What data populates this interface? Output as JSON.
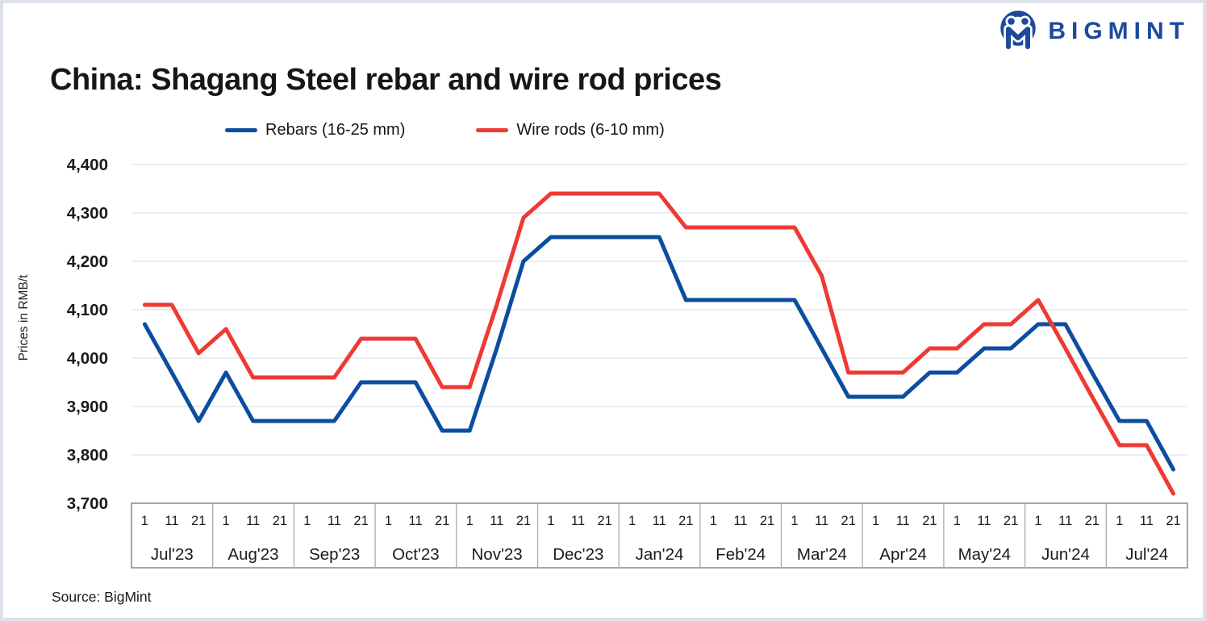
{
  "logo": {
    "brand": "BIGMINT"
  },
  "source": "Source: BigMint",
  "colors": {
    "brand_blue": "#1d4a9c",
    "rebars_blue": "#0b4da1",
    "wire_rods_red": "#ee3a34",
    "grid": "#e4e8ef",
    "axis_border": "#8f8f8f",
    "axis_divider": "#ababab",
    "frame_border": "#dce1ea",
    "text": "#161616"
  },
  "chart_data": {
    "type": "line",
    "title": "China: Shagang Steel rebar and wire rod prices",
    "ylabel": "Prices in RMB/t",
    "ylim": [
      3700,
      4400
    ],
    "ytick_step": 100,
    "ytick_labels": [
      "3,700",
      "3,800",
      "3,900",
      "4,000",
      "4,100",
      "4,200",
      "4,300",
      "4,400"
    ],
    "grid": "horizontal",
    "legend_position": "top",
    "categories": [
      "Jul'23",
      "Aug'23",
      "Sep'23",
      "Oct'23",
      "Nov'23",
      "Dec'23",
      "Jan'24",
      "Feb'24",
      "Mar'24",
      "Apr'24",
      "May'24",
      "Jun'24",
      "Jul'24"
    ],
    "day_ticks": [
      "1",
      "11",
      "21"
    ],
    "series": [
      {
        "name": "Rebars (16-25 mm)",
        "color": "#0b4da1",
        "values": [
          4070,
          3970,
          3870,
          3970,
          3870,
          3870,
          3870,
          3870,
          3950,
          3950,
          3950,
          3850,
          3850,
          4020,
          4200,
          4250,
          4250,
          4250,
          4250,
          4250,
          4120,
          4120,
          4120,
          4120,
          4120,
          4020,
          3920,
          3920,
          3920,
          3970,
          3970,
          4020,
          4020,
          4070,
          4070,
          3970,
          3870,
          3870,
          3770
        ]
      },
      {
        "name": "Wire rods (6-10 mm)",
        "color": "#ee3a34",
        "values": [
          4110,
          4110,
          4010,
          4060,
          3960,
          3960,
          3960,
          3960,
          4040,
          4040,
          4040,
          3940,
          3940,
          4110,
          4290,
          4340,
          4340,
          4340,
          4340,
          4340,
          4270,
          4270,
          4270,
          4270,
          4270,
          4170,
          3970,
          3970,
          3970,
          4020,
          4020,
          4070,
          4070,
          4120,
          4020,
          3920,
          3820,
          3820,
          3720
        ]
      }
    ]
  }
}
